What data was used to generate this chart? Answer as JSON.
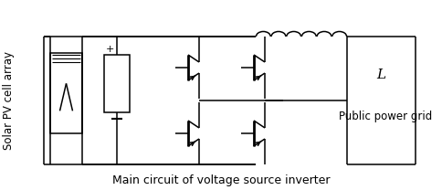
{
  "title": "Main circuit of voltage source inverter",
  "label_solar": "Solar PV cell array",
  "label_grid": "Public power grid",
  "label_inductor": "L",
  "bg_color": "#ffffff",
  "line_color": "#000000",
  "title_fontsize": 9,
  "label_fontsize": 8.5,
  "fig_width": 4.84,
  "fig_height": 2.08,
  "dpi": 100
}
